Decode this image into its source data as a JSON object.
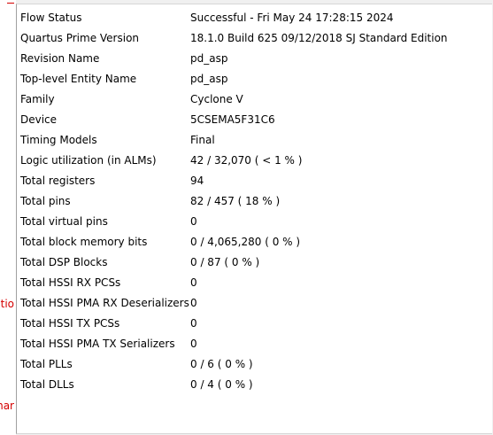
{
  "left_clip": {
    "text_1": "atio",
    "text_2": "nar"
  },
  "summary": {
    "rows": [
      {
        "key": "Flow Status",
        "value": "Successful - Fri May 24 17:28:15 2024"
      },
      {
        "key": "Quartus Prime Version",
        "value": "18.1.0 Build 625 09/12/2018 SJ Standard Edition"
      },
      {
        "key": "Revision Name",
        "value": "pd_asp"
      },
      {
        "key": "Top-level Entity Name",
        "value": "pd_asp"
      },
      {
        "key": "Family",
        "value": "Cyclone V"
      },
      {
        "key": "Device",
        "value": "5CSEMA5F31C6"
      },
      {
        "key": "Timing Models",
        "value": "Final"
      },
      {
        "key": "Logic utilization (in ALMs)",
        "value": "42 / 32,070 ( < 1 % )"
      },
      {
        "key": "Total registers",
        "value": "94"
      },
      {
        "key": "Total pins",
        "value": "82 / 457 ( 18 % )"
      },
      {
        "key": "Total virtual pins",
        "value": "0"
      },
      {
        "key": "Total block memory bits",
        "value": "0 / 4,065,280 ( 0 % )"
      },
      {
        "key": "Total DSP Blocks",
        "value": "0 / 87 ( 0 % )"
      },
      {
        "key": "Total HSSI RX PCSs",
        "value": "0"
      },
      {
        "key": "Total HSSI PMA RX Deserializers",
        "value": "0"
      },
      {
        "key": "Total HSSI TX PCSs",
        "value": "0"
      },
      {
        "key": "Total HSSI PMA TX Serializers",
        "value": "0"
      },
      {
        "key": "Total PLLs",
        "value": "0 / 6 ( 0 % )"
      },
      {
        "key": "Total DLLs",
        "value": "0 / 4 ( 0 % )"
      }
    ]
  }
}
